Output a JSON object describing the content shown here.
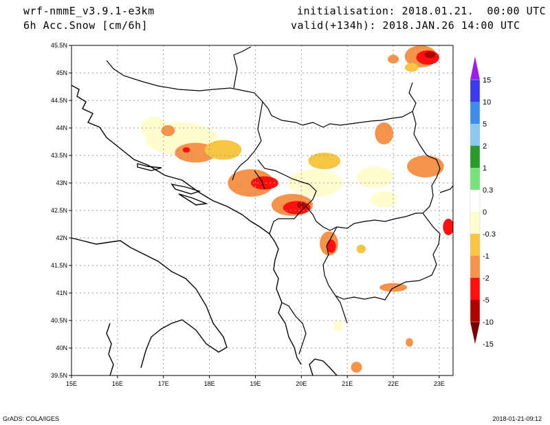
{
  "header": {
    "model": "wrf-nmmE_v3.9.1-e3km",
    "field": "6h Acc.Snow [cm/6h]",
    "initialisation": "initialisation: 2018.01.21.  00:00 UTC",
    "valid": "valid(+134h): 2018.JAN.26 14:00 UTC"
  },
  "axes": {
    "lon_labels": [
      "15E",
      "16E",
      "17E",
      "18E",
      "19E",
      "20E",
      "21E",
      "22E",
      "23E"
    ],
    "lat_labels": [
      "45.5N",
      "45N",
      "44.5N",
      "44N",
      "43.5N",
      "43N",
      "42.5N",
      "42N",
      "41.5N",
      "41N",
      "40.5N",
      "40N",
      "39.5N"
    ],
    "lon_range": [
      15,
      23.3
    ],
    "lat_range": [
      39.5,
      45.5
    ],
    "grid": true
  },
  "legend": {
    "labels": [
      "15",
      "10",
      "5",
      "2",
      "1",
      "0.3",
      "0",
      "-0.3",
      "-1",
      "-2",
      "-5",
      "-10",
      "-15"
    ],
    "colors": [
      "#9b1fe8",
      "#3a3ae8",
      "#3c8ee8",
      "#8ac8f0",
      "#2a9a2a",
      "#7ae27a",
      "#ffffff",
      "#fffcd0",
      "#f5c543",
      "#f5934a",
      "#ff1010",
      "#b00000",
      "#7a0000"
    ]
  },
  "footer": {
    "left": "GrADS: COLA/IGES",
    "right": "2018-01-21-09:12"
  },
  "map_data": {
    "snow_cells": [
      {
        "lon": 22.6,
        "lat": 45.3,
        "rx": 0.35,
        "ry": 0.2,
        "color": "#f5934a"
      },
      {
        "lon": 22.75,
        "lat": 45.28,
        "rx": 0.25,
        "ry": 0.13,
        "color": "#ff1010"
      },
      {
        "lon": 22.8,
        "lat": 45.33,
        "rx": 0.12,
        "ry": 0.06,
        "color": "#b00000"
      },
      {
        "lon": 22.0,
        "lat": 45.25,
        "rx": 0.12,
        "ry": 0.08,
        "color": "#f5934a"
      },
      {
        "lon": 22.4,
        "lat": 45.1,
        "rx": 0.15,
        "ry": 0.08,
        "color": "#f5c543"
      },
      {
        "lon": 16.8,
        "lat": 44.0,
        "rx": 0.3,
        "ry": 0.2,
        "color": "#fffcd0"
      },
      {
        "lon": 17.4,
        "lat": 43.8,
        "rx": 0.8,
        "ry": 0.3,
        "color": "#fffcd0"
      },
      {
        "lon": 17.1,
        "lat": 43.95,
        "rx": 0.15,
        "ry": 0.1,
        "color": "#f5934a"
      },
      {
        "lon": 17.7,
        "lat": 43.55,
        "rx": 0.45,
        "ry": 0.18,
        "color": "#f5934a"
      },
      {
        "lon": 17.5,
        "lat": 43.6,
        "rx": 0.08,
        "ry": 0.05,
        "color": "#ff1010"
      },
      {
        "lon": 18.3,
        "lat": 43.6,
        "rx": 0.4,
        "ry": 0.18,
        "color": "#f5c543"
      },
      {
        "lon": 18.9,
        "lat": 43.0,
        "rx": 0.5,
        "ry": 0.25,
        "color": "#f5934a"
      },
      {
        "lon": 19.2,
        "lat": 43.0,
        "rx": 0.3,
        "ry": 0.12,
        "color": "#ff1010"
      },
      {
        "lon": 19.8,
        "lat": 42.6,
        "rx": 0.45,
        "ry": 0.2,
        "color": "#f5934a"
      },
      {
        "lon": 19.9,
        "lat": 42.55,
        "rx": 0.3,
        "ry": 0.12,
        "color": "#ff1010"
      },
      {
        "lon": 20.0,
        "lat": 42.6,
        "rx": 0.1,
        "ry": 0.06,
        "color": "#b00000"
      },
      {
        "lon": 20.3,
        "lat": 43.0,
        "rx": 0.6,
        "ry": 0.25,
        "color": "#fffcd0"
      },
      {
        "lon": 20.5,
        "lat": 43.4,
        "rx": 0.35,
        "ry": 0.15,
        "color": "#f5c543"
      },
      {
        "lon": 20.6,
        "lat": 41.9,
        "rx": 0.2,
        "ry": 0.22,
        "color": "#f5934a"
      },
      {
        "lon": 20.65,
        "lat": 41.85,
        "rx": 0.1,
        "ry": 0.12,
        "color": "#ff1010"
      },
      {
        "lon": 21.3,
        "lat": 41.8,
        "rx": 0.1,
        "ry": 0.08,
        "color": "#f5c543"
      },
      {
        "lon": 21.8,
        "lat": 43.9,
        "rx": 0.2,
        "ry": 0.2,
        "color": "#f5934a"
      },
      {
        "lon": 21.6,
        "lat": 43.1,
        "rx": 0.4,
        "ry": 0.2,
        "color": "#fffcd0"
      },
      {
        "lon": 22.7,
        "lat": 43.3,
        "rx": 0.4,
        "ry": 0.2,
        "color": "#f5934a"
      },
      {
        "lon": 21.8,
        "lat": 42.7,
        "rx": 0.3,
        "ry": 0.15,
        "color": "#fffcd0"
      },
      {
        "lon": 23.2,
        "lat": 42.2,
        "rx": 0.12,
        "ry": 0.15,
        "color": "#ff1010"
      },
      {
        "lon": 22.0,
        "lat": 41.1,
        "rx": 0.3,
        "ry": 0.08,
        "color": "#f5934a"
      },
      {
        "lon": 22.35,
        "lat": 40.1,
        "rx": 0.08,
        "ry": 0.08,
        "color": "#f5934a"
      },
      {
        "lon": 21.2,
        "lat": 39.65,
        "rx": 0.12,
        "ry": 0.1,
        "color": "#f5934a"
      },
      {
        "lon": 20.8,
        "lat": 40.4,
        "rx": 0.1,
        "ry": 0.1,
        "color": "#fffcd0"
      }
    ]
  }
}
